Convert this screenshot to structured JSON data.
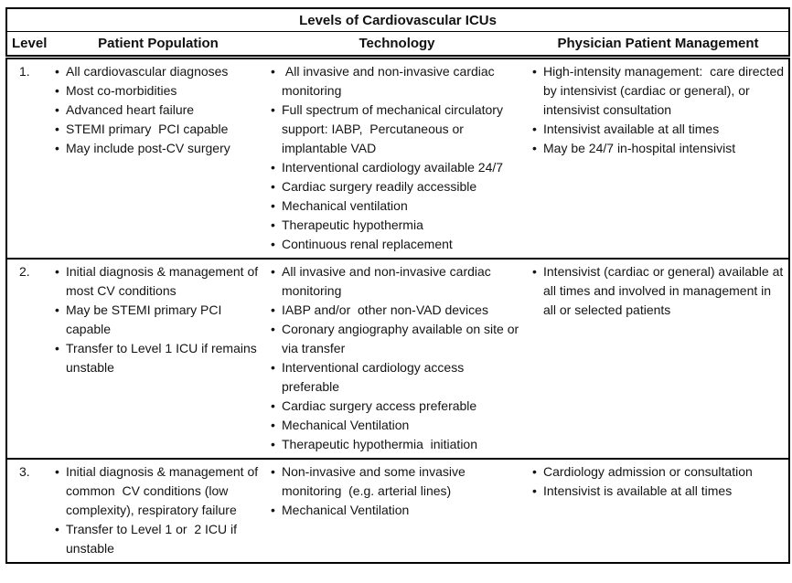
{
  "table": {
    "title": "Levels of Cardiovascular ICUs",
    "columns": [
      "Level",
      "Patient Population",
      "Technology",
      "Physician Patient Management"
    ],
    "rows": [
      {
        "level": "1.",
        "patient_population": [
          "All cardiovascular diagnoses",
          "Most co-morbidities",
          "Advanced heart failure",
          "STEMI primary  PCI capable",
          "May include post-CV surgery"
        ],
        "technology": [
          " All invasive and non-invasive cardiac monitoring",
          "Full spectrum of mechanical circulatory support: IABP,  Percutaneous or implantable VAD",
          "Interventional cardiology available 24/7",
          "Cardiac surgery readily accessible",
          "Mechanical ventilation",
          "Therapeutic hypothermia",
          "Continuous renal replacement"
        ],
        "physician_patient_management": [
          "High-intensity management:  care directed by intensivist (cardiac or general), or intensivist consultation",
          "Intensivist available at all times",
          "May be 24/7 in-hospital intensivist"
        ]
      },
      {
        "level": "2.",
        "patient_population": [
          "Initial diagnosis & management of most CV conditions",
          "May be STEMI primary PCI capable",
          "Transfer to Level 1 ICU if remains unstable"
        ],
        "technology": [
          "All invasive and non-invasive cardiac monitoring",
          "IABP and/or  other non-VAD devices",
          "Coronary angiography available on site or via transfer",
          "Interventional cardiology access preferable",
          "Cardiac surgery access preferable",
          "Mechanical Ventilation",
          "Therapeutic hypothermia  initiation"
        ],
        "physician_patient_management": [
          "Intensivist (cardiac or general) available at all times and involved in management in all or selected patients"
        ]
      },
      {
        "level": "3.",
        "patient_population": [
          "Initial diagnosis & management of common  CV conditions (low complexity), respiratory failure",
          "Transfer to Level 1 or  2 ICU if unstable"
        ],
        "technology": [
          "Non-invasive and some invasive monitoring  (e.g. arterial lines)",
          "Mechanical Ventilation"
        ],
        "physician_patient_management": [
          "Cardiology admission or consultation",
          "Intensivist is available at all times"
        ]
      }
    ]
  }
}
